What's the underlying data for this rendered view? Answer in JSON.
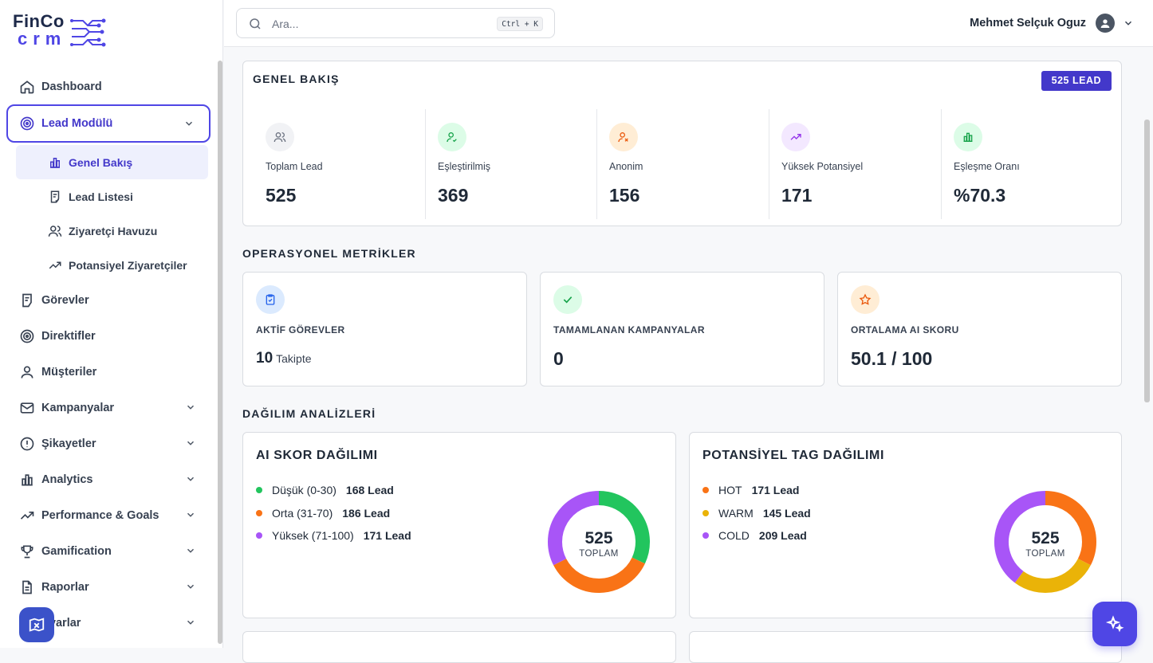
{
  "brand": {
    "line1": "FinCo",
    "line2": "crm"
  },
  "search": {
    "placeholder": "Ara...",
    "shortcut": "Ctrl + K"
  },
  "user": {
    "name": "Mehmet Selçuk Oguz"
  },
  "sidebar": {
    "items": [
      {
        "label": "Dashboard",
        "icon": "home-icon"
      },
      {
        "label": "Lead Modülü",
        "icon": "target-icon",
        "expanded": true
      },
      {
        "label": "Görevler",
        "icon": "task-icon"
      },
      {
        "label": "Direktifler",
        "icon": "target-icon"
      },
      {
        "label": "Müşteriler",
        "icon": "user-icon"
      },
      {
        "label": "Kampanyalar",
        "icon": "mail-icon"
      },
      {
        "label": "Şikayetler",
        "icon": "alert-icon"
      },
      {
        "label": "Analytics",
        "icon": "bar-chart-icon"
      },
      {
        "label": "Performance & Goals",
        "icon": "trend-icon"
      },
      {
        "label": "Gamification",
        "icon": "trophy-icon"
      },
      {
        "label": "Raporlar",
        "icon": "file-icon"
      },
      {
        "label": "Ayarlar",
        "icon": "settings-icon"
      }
    ],
    "sub_items": [
      {
        "label": "Genel Bakış",
        "icon": "bar-chart-icon"
      },
      {
        "label": "Lead Listesi",
        "icon": "list-icon"
      },
      {
        "label": "Ziyaretçi Havuzu",
        "icon": "users-icon"
      },
      {
        "label": "Potansiyel Ziyaretçiler",
        "icon": "trend-icon"
      }
    ]
  },
  "overview": {
    "title": "GENEL BAKIŞ",
    "badge": "525 LEAD",
    "stats": [
      {
        "label": "Toplam Lead",
        "value": "525",
        "color": "#6b7280"
      },
      {
        "label": "Eşleştirilmiş",
        "value": "369",
        "color": "#16a34a"
      },
      {
        "label": "Anonim",
        "value": "156",
        "color": "#ea580c"
      },
      {
        "label": "Yüksek Potansiyel",
        "value": "171",
        "color": "#9333ea"
      },
      {
        "label": "Eşleşme Oranı",
        "value": "%70.3",
        "color": "#16a34a"
      }
    ]
  },
  "operational": {
    "title": "OPERASYONEL METRİKLER",
    "cards": [
      {
        "label": "AKTİF GÖREVLER",
        "value": "10",
        "suffix": "Takipte"
      },
      {
        "label": "TAMAMLANAN KAMPANYALAR",
        "value": "0"
      },
      {
        "label": "ORTALAMA AI SKORU",
        "value": "50.1 / 100"
      }
    ]
  },
  "distribution": {
    "title": "DAĞILIM ANALİZLERİ",
    "ai_score": {
      "title": "AI SKOR DAĞILIMI",
      "total": "525",
      "total_label": "TOPLAM",
      "items": [
        {
          "label": "Düşük (0-30)",
          "count": "168 Lead",
          "value": 168,
          "color": "#22c55e"
        },
        {
          "label": "Orta (31-70)",
          "count": "186 Lead",
          "value": 186,
          "color": "#f97316"
        },
        {
          "label": "Yüksek (71-100)",
          "count": "171 Lead",
          "value": 171,
          "color": "#a855f7"
        }
      ]
    },
    "tag": {
      "title": "POTANSİYEL TAG DAĞILIMI",
      "total": "525",
      "total_label": "TOPLAM",
      "items": [
        {
          "label": "HOT",
          "count": "171 Lead",
          "value": 171,
          "color": "#f97316"
        },
        {
          "label": "WARM",
          "count": "145 Lead",
          "value": 145,
          "color": "#eab308"
        },
        {
          "label": "COLD",
          "count": "209 Lead",
          "value": 209,
          "color": "#a855f7"
        }
      ]
    }
  }
}
